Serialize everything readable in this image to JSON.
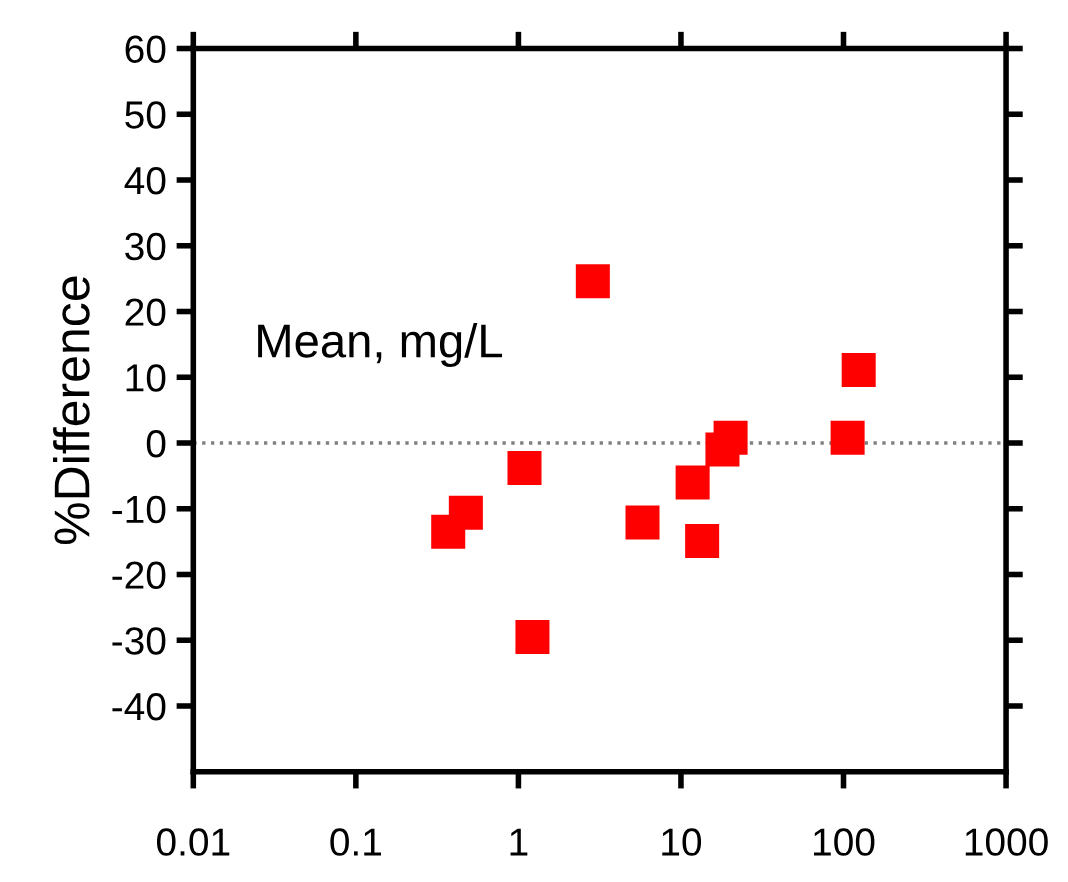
{
  "chart_data": {
    "type": "scatter",
    "ylabel": "%Difference",
    "annotations": [
      "Mean, mg/L"
    ],
    "x": [
      0.37,
      0.475,
      1.09,
      1.22,
      2.87,
      5.8,
      11.8,
      13.5,
      18,
      20.2,
      106,
      124
    ],
    "series": [
      {
        "color": "#ff0000",
        "values": [
          -13.5,
          -10.6,
          -3.8,
          -29.5,
          24.6,
          -12.1,
          -6.0,
          -14.9,
          -1.0,
          0.8,
          0.8,
          11.1
        ]
      }
    ],
    "log": "x",
    "marker": "square",
    "xlim": [
      0.01,
      1000
    ],
    "xticks": [
      0.01,
      0.1,
      1,
      10,
      100,
      1000
    ],
    "ylim": [
      -50,
      60
    ],
    "yticks": [
      -40,
      -30,
      -20,
      -10,
      0,
      10,
      20,
      30,
      40,
      50,
      60
    ],
    "ref_lines": [
      {
        "axis": "y",
        "value": 0,
        "color": "#808080",
        "line_style": "dotted"
      }
    ],
    "grid": false,
    "legend": false
  }
}
